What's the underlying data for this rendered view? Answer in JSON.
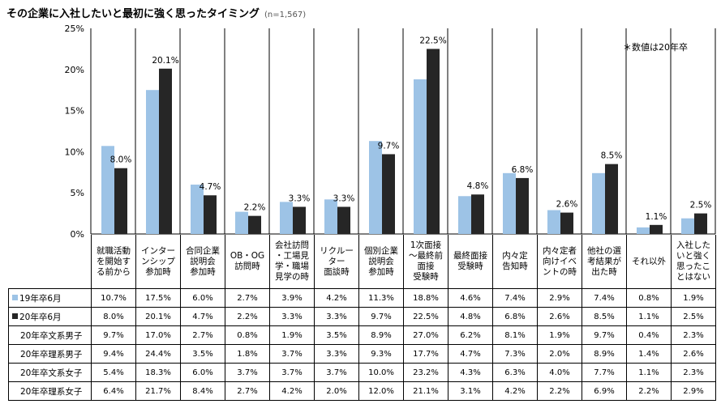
{
  "title": "その企業に入社したいと最初に強く思ったタイミング",
  "sample": "(n=1,567)",
  "note": "＊数値は20年卒",
  "chart_data": {
    "type": "bar",
    "title": "その企業に入社したいと最初に強く思ったタイミング",
    "ylim": [
      0,
      25
    ],
    "yticks": [
      "0%",
      "5%",
      "10%",
      "15%",
      "20%",
      "25%"
    ],
    "grid": false,
    "legend": "table-left",
    "categories": [
      "就職活動\nを開始す\nる前から",
      "インター\nンシップ\n参加時",
      "合同企業\n説明会\n参加時",
      "OB・OG\n訪問時",
      "会社訪問\n・工場見\n学・職場\n見学の時",
      "リクルー\nター\n面談時",
      "個別企業\n説明会\n参加時",
      "1次面接\n～最終前\n面接\n受験時",
      "最終面接\n受験時",
      "内々定\n告知時",
      "内々定者\n向けイベ\nントの時",
      "他社の選\n考結果が\n出た時",
      "それ以外",
      "入社した\nいと強く\n思ったこ\nとはない"
    ],
    "series": [
      {
        "name": "19年卒6月",
        "color": "#9dc3e6",
        "values": [
          10.7,
          17.5,
          6.0,
          2.7,
          3.9,
          4.2,
          11.3,
          18.8,
          4.6,
          7.4,
          2.9,
          7.4,
          0.8,
          1.9
        ],
        "labels": [
          "10.7%",
          "17.5%",
          "6.0%",
          "2.7%",
          "3.9%",
          "4.2%",
          "11.3%",
          "18.8%",
          "4.6%",
          "7.4%",
          "2.9%",
          "7.4%",
          "0.8%",
          "1.9%"
        ]
      },
      {
        "name": "20年卒6月",
        "color": "#262626",
        "values": [
          8.0,
          20.1,
          4.7,
          2.2,
          3.3,
          3.3,
          9.7,
          22.5,
          4.8,
          6.8,
          2.6,
          8.5,
          1.1,
          2.5
        ],
        "labels": [
          "8.0%",
          "20.1%",
          "4.7%",
          "2.2%",
          "3.3%",
          "3.3%",
          "9.7%",
          "22.5%",
          "4.8%",
          "6.8%",
          "2.6%",
          "8.5%",
          "1.1%",
          "2.5%"
        ]
      }
    ],
    "table_rows": [
      {
        "name": "20年卒文系男子",
        "labels": [
          "9.7%",
          "17.0%",
          "2.7%",
          "0.8%",
          "1.9%",
          "3.5%",
          "8.9%",
          "27.0%",
          "6.2%",
          "8.1%",
          "1.9%",
          "9.7%",
          "0.4%",
          "2.3%"
        ]
      },
      {
        "name": "20年卒理系男子",
        "labels": [
          "9.4%",
          "24.4%",
          "3.5%",
          "1.8%",
          "3.7%",
          "3.3%",
          "9.3%",
          "17.7%",
          "4.7%",
          "7.3%",
          "2.0%",
          "8.9%",
          "1.4%",
          "2.6%"
        ]
      },
      {
        "name": "20年卒文系女子",
        "labels": [
          "5.4%",
          "18.3%",
          "6.0%",
          "3.7%",
          "3.7%",
          "3.7%",
          "10.0%",
          "23.2%",
          "4.3%",
          "6.3%",
          "4.0%",
          "7.7%",
          "1.1%",
          "2.3%"
        ]
      },
      {
        "name": "20年卒理系女子",
        "labels": [
          "6.4%",
          "21.7%",
          "8.4%",
          "2.7%",
          "4.2%",
          "2.0%",
          "12.0%",
          "21.1%",
          "3.1%",
          "4.2%",
          "2.2%",
          "6.9%",
          "2.2%",
          "2.9%"
        ]
      }
    ]
  }
}
